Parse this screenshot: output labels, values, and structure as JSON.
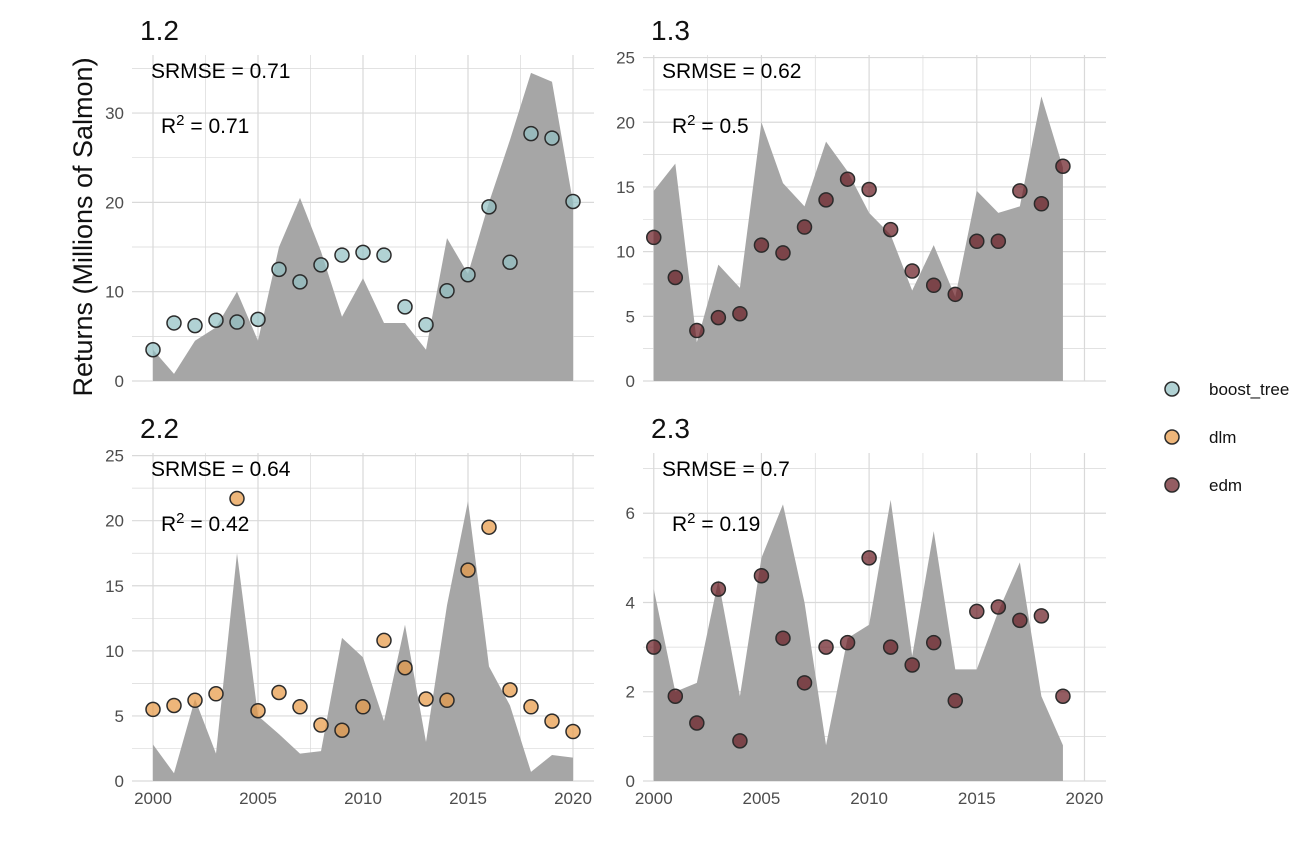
{
  "ylabel": "Returns (Millions of Salmon)",
  "colors": {
    "area": "#a6a6a6",
    "grid": "#d9d9d9",
    "point_stroke": "#2b2b2b",
    "boost_tree": "#93c1c4",
    "dlm": "#e89a47",
    "edm": "#6b1f25"
  },
  "legend": {
    "position": "right",
    "items": [
      {
        "name": "boost_tree",
        "color": "#93c1c4"
      },
      {
        "name": "dlm",
        "color": "#e89a47"
      },
      {
        "name": "edm",
        "color": "#6b1f25"
      }
    ]
  },
  "chart_data": [
    {
      "type": "area+scatter",
      "title": "1.2",
      "srmse": "SRMSE = 0.71",
      "r2_prefix": "R",
      "r2_sup": "2",
      "r2_value": " = 0.71",
      "model": "boost_tree",
      "xlim": [
        1999,
        2021
      ],
      "ylim": [
        0,
        36.5
      ],
      "xticks": [
        2000,
        2005,
        2010,
        2015,
        2020
      ],
      "yticks": [
        0,
        10,
        20,
        30
      ],
      "show_xticks": false,
      "observed": {
        "x": [
          2000,
          2001,
          2002,
          2003,
          2004,
          2005,
          2006,
          2007,
          2008,
          2009,
          2010,
          2011,
          2012,
          2013,
          2014,
          2015,
          2016,
          2017,
          2018,
          2019,
          2020
        ],
        "y": [
          3.5,
          0.8,
          4.5,
          6.0,
          10.0,
          4.5,
          15.0,
          20.5,
          14.5,
          7.2,
          11.5,
          6.5,
          6.5,
          3.5,
          16.0,
          12.0,
          20.0,
          27.0,
          34.5,
          33.5,
          20.0
        ]
      },
      "predicted": {
        "x": [
          2000,
          2001,
          2002,
          2003,
          2004,
          2005,
          2006,
          2007,
          2008,
          2009,
          2010,
          2011,
          2012,
          2013,
          2014,
          2015,
          2016,
          2017,
          2018,
          2019,
          2020
        ],
        "y": [
          3.5,
          6.5,
          6.2,
          6.8,
          6.6,
          6.9,
          12.5,
          11.1,
          13.0,
          14.1,
          14.4,
          14.1,
          8.3,
          6.3,
          10.1,
          11.9,
          19.5,
          13.3,
          27.7,
          27.2,
          20.1
        ]
      }
    },
    {
      "type": "area+scatter",
      "title": "1.3",
      "srmse": "SRMSE = 0.62",
      "r2_prefix": "R",
      "r2_sup": "2",
      "r2_value": " = 0.5",
      "model": "edm",
      "xlim": [
        1999.5,
        2021
      ],
      "ylim": [
        0,
        25.2
      ],
      "xticks": [
        2000,
        2005,
        2010,
        2015,
        2020
      ],
      "yticks": [
        0,
        5,
        10,
        15,
        20,
        25
      ],
      "show_xticks": false,
      "observed": {
        "x": [
          2000,
          2001,
          2002,
          2003,
          2004,
          2005,
          2006,
          2007,
          2008,
          2009,
          2010,
          2011,
          2012,
          2013,
          2014,
          2015,
          2016,
          2017,
          2018,
          2019
        ],
        "y": [
          14.7,
          16.8,
          3.0,
          9.0,
          7.2,
          20.0,
          15.3,
          13.5,
          18.5,
          16.2,
          13.0,
          11.3,
          7.0,
          10.5,
          6.5,
          14.7,
          13.0,
          13.5,
          22.0,
          16.5
        ]
      },
      "predicted": {
        "x": [
          2000,
          2001,
          2002,
          2003,
          2004,
          2005,
          2006,
          2007,
          2008,
          2009,
          2010,
          2011,
          2012,
          2013,
          2014,
          2015,
          2016,
          2017,
          2018,
          2019
        ],
        "y": [
          11.1,
          8.0,
          3.9,
          4.9,
          5.2,
          10.5,
          9.9,
          11.9,
          14.0,
          15.6,
          14.8,
          11.7,
          8.5,
          7.4,
          6.7,
          10.8,
          10.8,
          14.7,
          13.7,
          16.6
        ]
      }
    },
    {
      "type": "area+scatter",
      "title": "2.2",
      "srmse": "SRMSE = 0.64",
      "r2_prefix": "R",
      "r2_sup": "2",
      "r2_value": " = 0.42",
      "model": "dlm",
      "xlim": [
        1999,
        2021
      ],
      "ylim": [
        0,
        25.2
      ],
      "xticks": [
        2000,
        2005,
        2010,
        2015,
        2020
      ],
      "yticks": [
        0,
        5,
        10,
        15,
        20,
        25
      ],
      "show_xticks": true,
      "observed": {
        "x": [
          2000,
          2001,
          2002,
          2003,
          2004,
          2005,
          2006,
          2007,
          2008,
          2009,
          2010,
          2011,
          2012,
          2013,
          2014,
          2015,
          2016,
          2017,
          2018,
          2019,
          2020
        ],
        "y": [
          2.8,
          0.6,
          6.3,
          2.1,
          17.5,
          5.0,
          3.6,
          2.1,
          2.3,
          11.0,
          9.5,
          4.6,
          12.0,
          3.0,
          13.5,
          21.5,
          8.8,
          5.8,
          0.7,
          2.0,
          1.8
        ]
      },
      "predicted": {
        "x": [
          2000,
          2001,
          2002,
          2003,
          2004,
          2005,
          2006,
          2007,
          2008,
          2009,
          2010,
          2011,
          2012,
          2013,
          2014,
          2015,
          2016,
          2017,
          2018,
          2019,
          2020
        ],
        "y": [
          5.5,
          5.8,
          6.2,
          6.7,
          21.7,
          5.4,
          6.8,
          5.7,
          4.3,
          3.9,
          5.7,
          10.8,
          8.7,
          6.3,
          6.2,
          16.2,
          19.5,
          7.0,
          5.7,
          4.6,
          3.8
        ]
      }
    },
    {
      "type": "area+scatter",
      "title": "2.3",
      "srmse": "SRMSE = 0.7",
      "r2_prefix": "R",
      "r2_sup": "2",
      "r2_value": " = 0.19",
      "model": "edm",
      "xlim": [
        1999.5,
        2021
      ],
      "ylim": [
        0,
        7.35
      ],
      "xticks": [
        2000,
        2005,
        2010,
        2015,
        2020
      ],
      "yticks": [
        0,
        2,
        4,
        6
      ],
      "show_xticks": true,
      "observed": {
        "x": [
          2000,
          2001,
          2002,
          2003,
          2004,
          2005,
          2006,
          2007,
          2008,
          2009,
          2010,
          2011,
          2012,
          2013,
          2014,
          2015,
          2016,
          2017,
          2018,
          2019
        ],
        "y": [
          4.3,
          2.0,
          2.2,
          4.5,
          1.9,
          5.0,
          6.2,
          4.0,
          0.8,
          3.2,
          3.5,
          6.3,
          2.8,
          5.6,
          2.5,
          2.5,
          3.8,
          4.9,
          1.9,
          0.8
        ]
      },
      "predicted": {
        "x": [
          2000,
          2001,
          2002,
          2003,
          2004,
          2005,
          2006,
          2007,
          2008,
          2009,
          2010,
          2011,
          2012,
          2013,
          2014,
          2015,
          2016,
          2017,
          2018,
          2019
        ],
        "y": [
          3.0,
          1.9,
          1.3,
          4.3,
          0.9,
          4.6,
          3.2,
          2.2,
          3.0,
          3.1,
          5.0,
          3.0,
          2.6,
          3.1,
          1.8,
          3.8,
          3.9,
          3.6,
          3.7,
          1.9
        ]
      }
    }
  ]
}
